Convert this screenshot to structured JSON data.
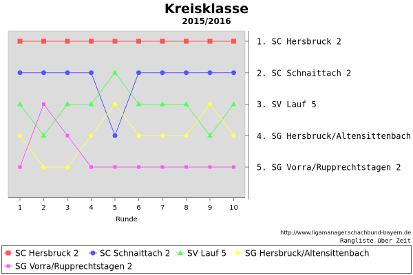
{
  "chart_data": {
    "type": "line",
    "title": "Kreisklasse",
    "subtitle": "2015/2016",
    "xlabel": "Runde",
    "x": [
      1,
      2,
      3,
      4,
      5,
      6,
      7,
      8,
      9,
      10
    ],
    "ylim": [
      1,
      5
    ],
    "y_inverted": true,
    "grid": false,
    "right_labels": [
      "1.  SC Hersbruck 2",
      "2.  SC Schnaittach 2",
      "3.  SV Lauf 5",
      "4.  SG Hersbruck/Altensittenbach",
      "5.  SG Vorra/Rupprechtstagen 2"
    ],
    "series": [
      {
        "name": "SC Hersbruck 2",
        "color": "#ff5555",
        "marker": "square",
        "values": [
          1,
          1,
          1,
          1,
          1,
          1,
          1,
          1,
          1,
          1
        ]
      },
      {
        "name": "SC Schnaittach 2",
        "color": "#5555ff",
        "marker": "circle",
        "values": [
          2,
          2,
          2,
          2,
          4,
          2,
          2,
          2,
          2,
          2
        ]
      },
      {
        "name": "SV Lauf 5",
        "color": "#55ff55",
        "marker": "triangle-up",
        "values": [
          3,
          4,
          3,
          3,
          2,
          3,
          3,
          3,
          4,
          3
        ]
      },
      {
        "name": "SG Hersbruck/Altensittenbach",
        "color": "#ffff55",
        "marker": "diamond",
        "values": [
          4,
          5,
          5,
          4,
          3,
          4,
          4,
          4,
          3,
          4
        ]
      },
      {
        "name": "SG Vorra/Rupprechtstagen 2",
        "color": "#ff55ff",
        "marker": "small-square",
        "values": [
          5,
          3,
          4,
          5,
          5,
          5,
          5,
          5,
          5,
          5
        ]
      }
    ],
    "legend_placement": "bottom"
  },
  "footer": {
    "url": "http://www.ligamanager.schachbund-bayern.de",
    "caption": "Rangliste über Zeit"
  }
}
